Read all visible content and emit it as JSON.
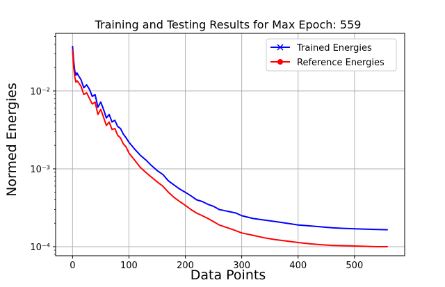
{
  "chart_data": {
    "type": "line",
    "title": "Training and Testing Results for Max Epoch: 559",
    "xlabel": "Data Points",
    "ylabel": "Normed Energies",
    "xlim": [
      -30,
      589
    ],
    "ylim": [
      7.65e-05,
      0.055
    ],
    "yscale": "log",
    "grid": true,
    "legend_position": "top-right",
    "x_ticks": [
      0,
      100,
      200,
      300,
      400,
      500
    ],
    "x_tick_labels": [
      "0",
      "100",
      "200",
      "300",
      "400",
      "500"
    ],
    "y_ticks": [
      0.0001,
      0.001,
      0.01
    ],
    "y_tick_labels": [
      "10⁻⁴",
      "10⁻³",
      "10⁻²"
    ],
    "series": [
      {
        "name": "Trained Energies",
        "color": "#0000ff",
        "marker": "x",
        "x": [
          0,
          2,
          4,
          6,
          8,
          10,
          15,
          20,
          25,
          30,
          35,
          40,
          45,
          50,
          55,
          60,
          65,
          70,
          75,
          80,
          85,
          90,
          95,
          100,
          110,
          120,
          130,
          140,
          150,
          160,
          170,
          180,
          190,
          200,
          210,
          220,
          230,
          240,
          250,
          260,
          270,
          280,
          290,
          300,
          320,
          340,
          360,
          380,
          400,
          420,
          440,
          460,
          480,
          500,
          520,
          540,
          559
        ],
        "y": [
          0.038,
          0.024,
          0.018,
          0.016,
          0.017,
          0.016,
          0.014,
          0.011,
          0.012,
          0.0105,
          0.0085,
          0.009,
          0.0062,
          0.0072,
          0.0058,
          0.0045,
          0.005,
          0.004,
          0.0042,
          0.0035,
          0.0033,
          0.0028,
          0.0025,
          0.0022,
          0.0018,
          0.0015,
          0.0013,
          0.0011,
          0.00095,
          0.00085,
          0.0007,
          0.00062,
          0.00055,
          0.0005,
          0.00045,
          0.0004,
          0.00038,
          0.00035,
          0.00033,
          0.0003,
          0.00029,
          0.00028,
          0.00027,
          0.00025,
          0.00023,
          0.00022,
          0.00021,
          0.0002,
          0.00019,
          0.000185,
          0.00018,
          0.000175,
          0.000172,
          0.00017,
          0.000168,
          0.000166,
          0.000165
        ]
      },
      {
        "name": "Reference Energies",
        "color": "#ff0000",
        "marker": "o",
        "x": [
          0,
          2,
          4,
          6,
          8,
          10,
          15,
          20,
          25,
          30,
          35,
          40,
          45,
          50,
          55,
          60,
          65,
          70,
          75,
          80,
          85,
          90,
          95,
          100,
          110,
          120,
          130,
          140,
          150,
          160,
          170,
          180,
          190,
          200,
          210,
          220,
          230,
          240,
          250,
          260,
          270,
          280,
          290,
          300,
          320,
          340,
          360,
          380,
          400,
          420,
          440,
          460,
          480,
          500,
          520,
          540,
          559
        ],
        "y": [
          0.034,
          0.02,
          0.015,
          0.013,
          0.0135,
          0.013,
          0.0115,
          0.009,
          0.0095,
          0.008,
          0.0068,
          0.0072,
          0.005,
          0.0058,
          0.0046,
          0.0036,
          0.004,
          0.0032,
          0.0033,
          0.0027,
          0.0025,
          0.0021,
          0.0019,
          0.0016,
          0.0013,
          0.00105,
          0.0009,
          0.00078,
          0.00068,
          0.0006,
          0.0005,
          0.00043,
          0.00038,
          0.00034,
          0.0003,
          0.00027,
          0.00025,
          0.00023,
          0.00021,
          0.00019,
          0.00018,
          0.00017,
          0.00016,
          0.00015,
          0.00014,
          0.00013,
          0.000123,
          0.000118,
          0.000113,
          0.000109,
          0.000106,
          0.000104,
          0.000103,
          0.000102,
          0.000101,
          0.0001,
          0.0001
        ]
      }
    ]
  }
}
